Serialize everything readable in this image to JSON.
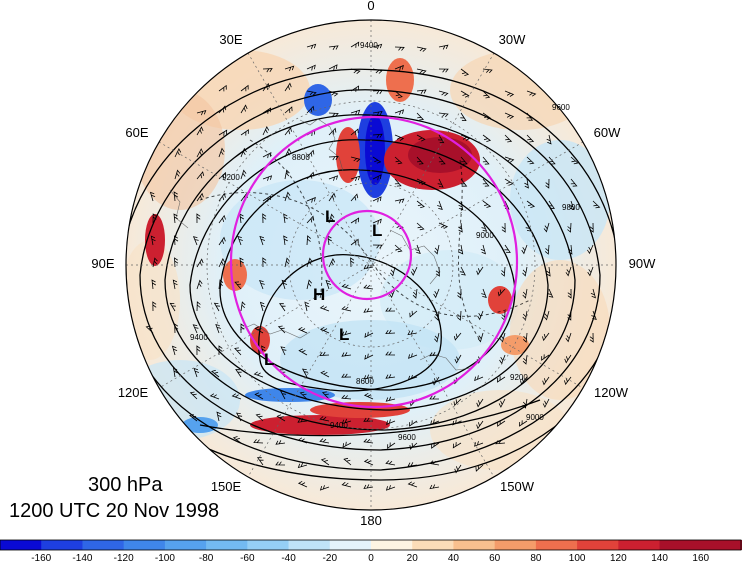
{
  "caption": {
    "level": "300 hPa",
    "time": "1200 UTC 20 Nov 1998"
  },
  "longitude_labels": {
    "top": "0",
    "top_left": "30E",
    "top_right": "30W",
    "upper_left": "60E",
    "upper_right": "60W",
    "left": "90E",
    "right": "90W",
    "lower_left": "120E",
    "lower_right": "120W",
    "bottom_left": "150E",
    "bottom_right": "150W",
    "bottom": "180"
  },
  "pressure_centers": [
    "L",
    "L",
    "H",
    "L",
    "L"
  ],
  "contour_labels": [
    "9400",
    "9600",
    "8800",
    "9200",
    "8600",
    "9000",
    "9400",
    "9600",
    "9200",
    "9000",
    "9800",
    "9400"
  ],
  "colorbar": {
    "labels": [
      "-160",
      "-140",
      "-120",
      "-100",
      "-80",
      "-60",
      "-40",
      "-20",
      "0",
      "20",
      "40",
      "60",
      "80",
      "100",
      "120",
      "140",
      "160"
    ],
    "colors": [
      "#0a0ad4",
      "#1e3fe0",
      "#2f66e6",
      "#3f86ea",
      "#56a2ee",
      "#73baf1",
      "#95cff5",
      "#bfe3f8",
      "#e4f3fb",
      "#fdf4e2",
      "#fbddb8",
      "#f8c08e",
      "#f49c6a",
      "#ee6f4e",
      "#e1423a",
      "#cc2030",
      "#a8102a"
    ]
  },
  "overlay_circle_color": "#e020e0"
}
